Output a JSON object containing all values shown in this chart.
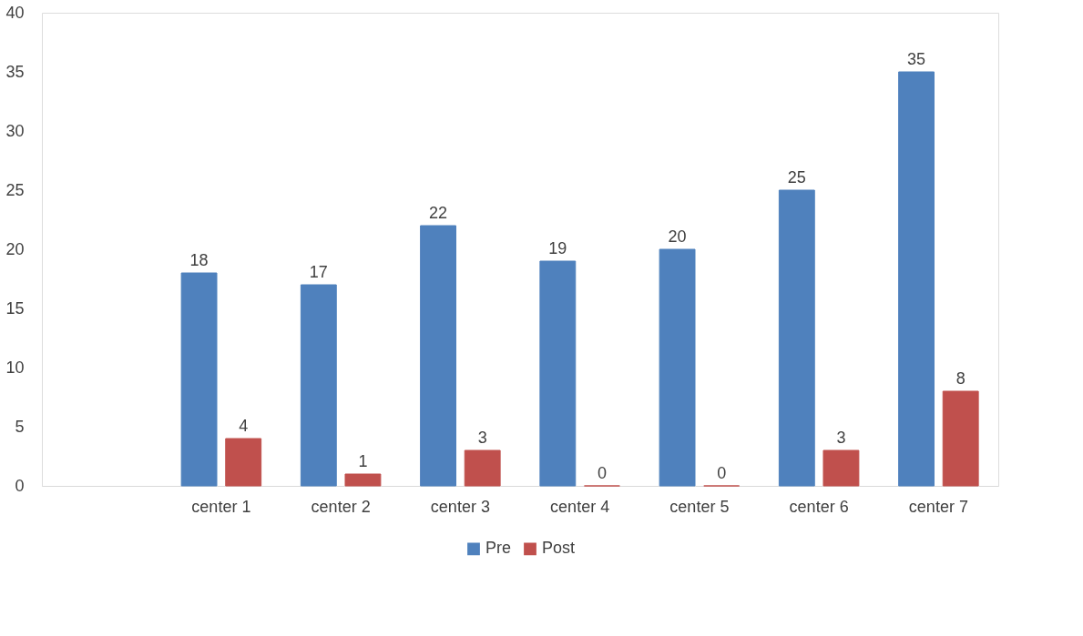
{
  "chart_data": {
    "type": "bar",
    "categories": [
      null,
      "center 1",
      "center 2",
      "center 3",
      "center 4",
      "center 5",
      "center 6",
      "center 7"
    ],
    "series": [
      {
        "name": "Pre",
        "color": "#4f81bd",
        "values": [
          null,
          18,
          17,
          22,
          19,
          20,
          25,
          35
        ]
      },
      {
        "name": "Post",
        "color": "#c0504d",
        "values": [
          null,
          4,
          1,
          3,
          0,
          0,
          3,
          8
        ]
      }
    ],
    "ylim": [
      0,
      40
    ],
    "yticks": [
      0,
      5,
      10,
      15,
      20,
      25,
      30,
      35,
      40
    ],
    "grid": false,
    "legend": "bottom",
    "data_labels": true
  }
}
